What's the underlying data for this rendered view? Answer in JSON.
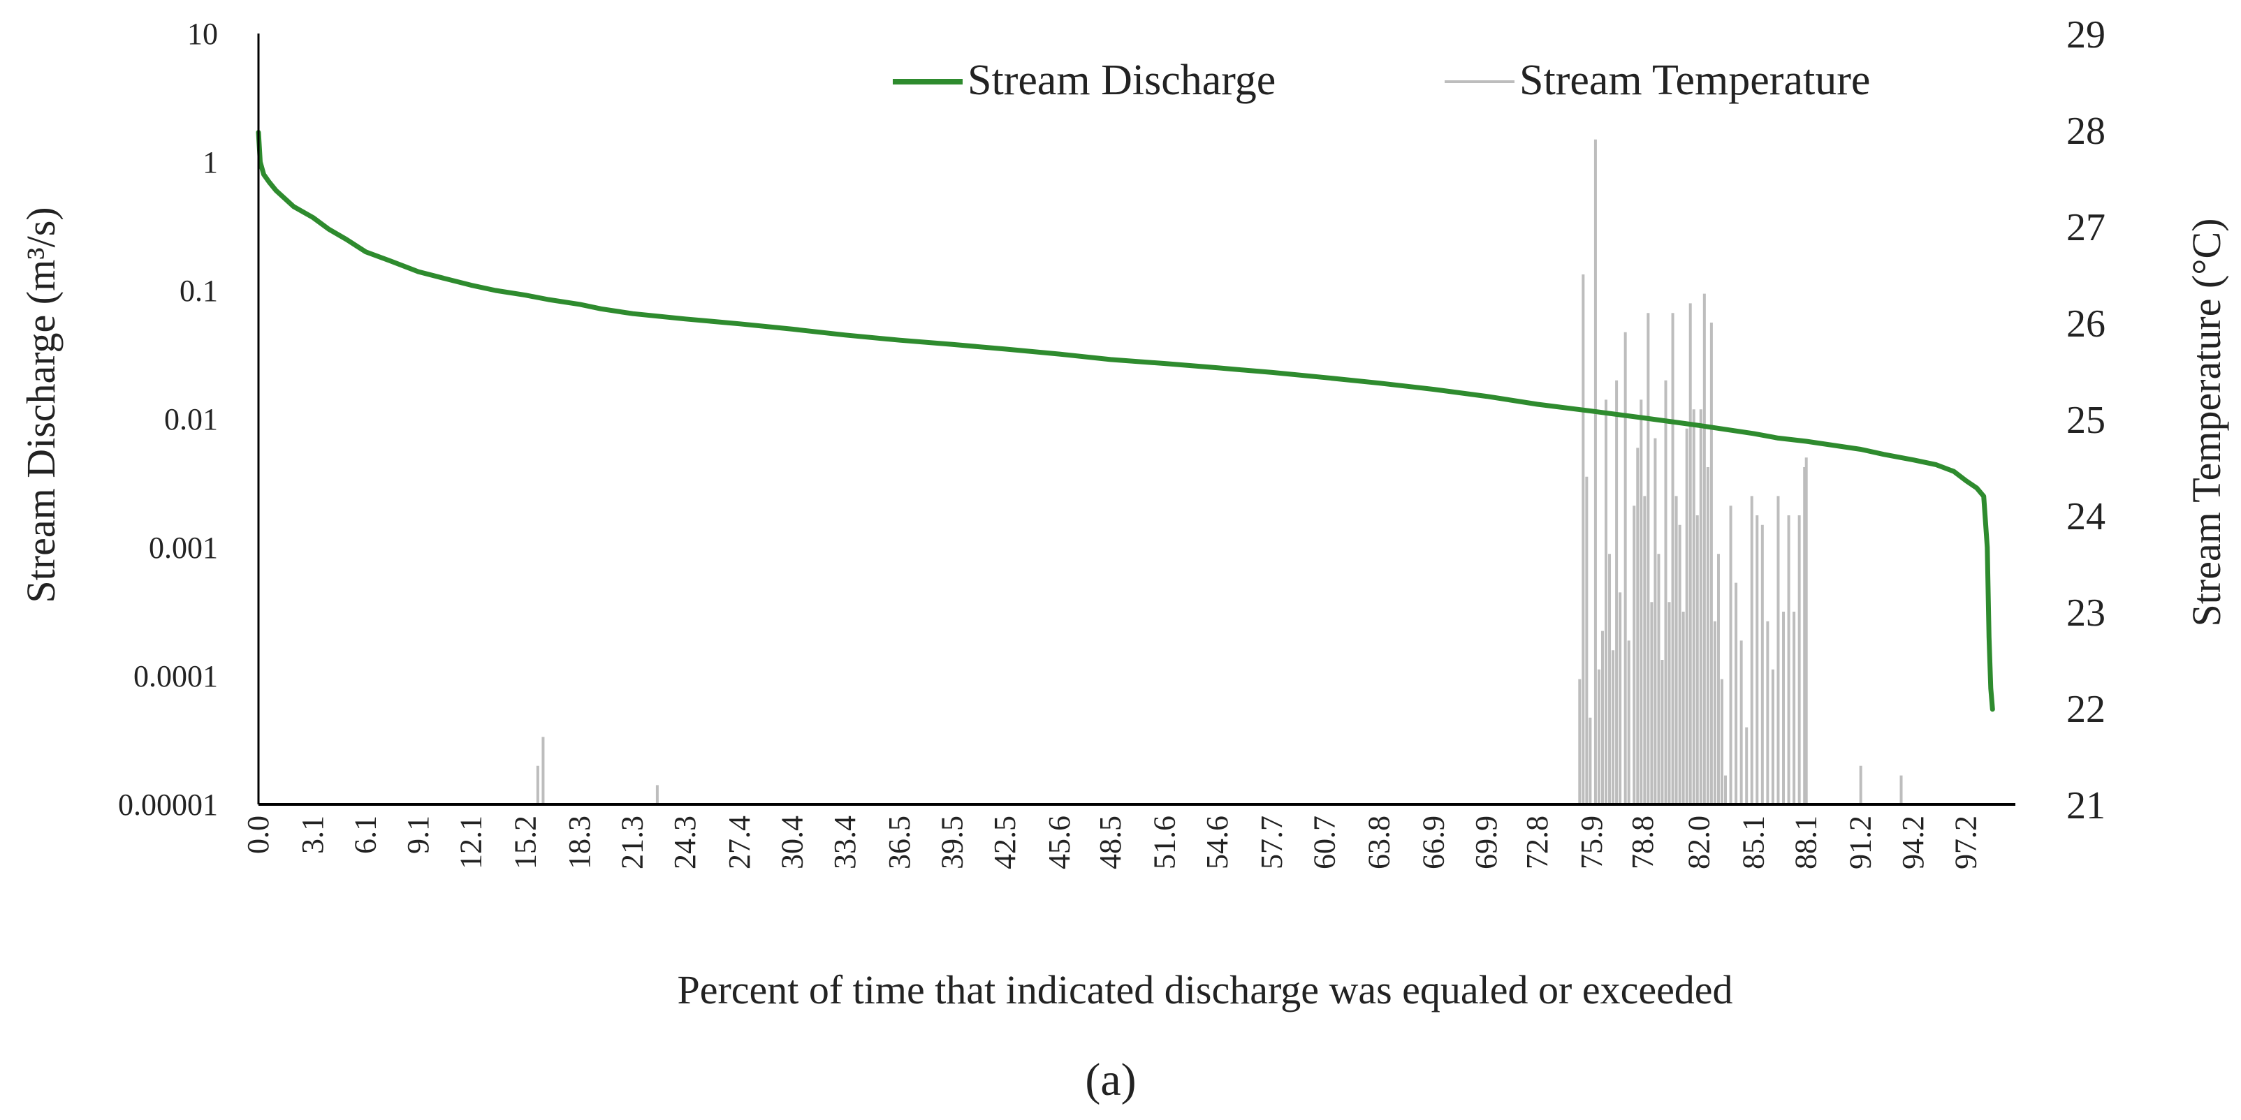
{
  "chart_data": {
    "type": "line",
    "title": "",
    "xlabel": "Percent of time that indicated discharge was equaled or exceeded",
    "ylabel_left": "Stream Discharge (m³/s)",
    "ylabel_right": "Stream Temperature (°C)",
    "panel_label": "(a)",
    "x_range": [
      0,
      100
    ],
    "x_tick_labels": [
      "0.0",
      "3.1",
      "6.1",
      "9.1",
      "12.1",
      "15.2",
      "18.3",
      "21.3",
      "24.3",
      "27.4",
      "30.4",
      "33.4",
      "36.5",
      "39.5",
      "42.5",
      "45.6",
      "48.5",
      "51.6",
      "54.6",
      "57.7",
      "60.7",
      "63.8",
      "66.9",
      "69.9",
      "72.8",
      "75.9",
      "78.8",
      "82.0",
      "85.1",
      "88.1",
      "91.2",
      "94.2",
      "97.2"
    ],
    "y_left": {
      "scale": "log",
      "range": [
        1e-05,
        10
      ],
      "tick_labels": [
        "10",
        "1",
        "0.1",
        "0.01",
        "0.001",
        "0.0001",
        "0.00001"
      ]
    },
    "y_right": {
      "scale": "linear",
      "range": [
        21,
        29
      ],
      "tick_labels": [
        "29",
        "28",
        "27",
        "26",
        "25",
        "24",
        "23",
        "22",
        "21"
      ]
    },
    "legend": {
      "placement": "top-right",
      "discharge_label": "Stream Discharge",
      "temperature_label": "Stream Temperature"
    },
    "colors": {
      "discharge": "#2e8b2e",
      "temperature": "#bdbdbd",
      "axis": "#000000"
    },
    "series": [
      {
        "name": "Stream Discharge",
        "axis": "left",
        "x": [
          0,
          0.1,
          0.3,
          0.6,
          1,
          1.5,
          2,
          3.1,
          4,
          5,
          6.1,
          7.5,
          9.1,
          10.5,
          12.1,
          13.5,
          15.2,
          16.5,
          18.3,
          19.5,
          21.3,
          24.3,
          27.4,
          30.4,
          33.4,
          36.5,
          39.5,
          42.5,
          45.6,
          48.5,
          51.6,
          54.6,
          57.7,
          60.7,
          63.8,
          66.9,
          69.9,
          72.8,
          75.9,
          78.8,
          82.0,
          83.5,
          85.1,
          86.5,
          88.1,
          91.2,
          92.5,
          94.2,
          95.5,
          96.5,
          97.2,
          97.8,
          98.2,
          98.4,
          98.5,
          98.6,
          98.7
        ],
        "y": [
          1.7,
          1.0,
          0.8,
          0.7,
          0.6,
          0.52,
          0.45,
          0.37,
          0.3,
          0.25,
          0.2,
          0.17,
          0.14,
          0.125,
          0.11,
          0.1,
          0.092,
          0.085,
          0.078,
          0.072,
          0.066,
          0.06,
          0.055,
          0.05,
          0.045,
          0.041,
          0.038,
          0.035,
          0.032,
          0.029,
          0.027,
          0.025,
          0.023,
          0.021,
          0.019,
          0.017,
          0.015,
          0.013,
          0.0115,
          0.0102,
          0.0089,
          0.0083,
          0.0077,
          0.0071,
          0.0067,
          0.0058,
          0.0053,
          0.0048,
          0.0044,
          0.0039,
          0.0033,
          0.0029,
          0.0025,
          0.001,
          0.0002,
          8e-05,
          5.5e-05
        ]
      },
      {
        "name": "Stream Temperature",
        "axis": "right",
        "type": "bar",
        "x": [
          15.9,
          16.2,
          22.7,
          75.2,
          75.4,
          75.6,
          75.8,
          76.1,
          76.3,
          76.5,
          76.7,
          76.9,
          77.1,
          77.3,
          77.5,
          77.8,
          78.0,
          78.3,
          78.5,
          78.7,
          78.9,
          79.1,
          79.3,
          79.5,
          79.7,
          79.9,
          80.1,
          80.3,
          80.5,
          80.7,
          80.9,
          81.1,
          81.3,
          81.5,
          81.7,
          81.9,
          82.1,
          82.3,
          82.5,
          82.7,
          82.9,
          83.1,
          83.3,
          83.5,
          83.8,
          84.1,
          84.4,
          84.7,
          85.0,
          85.3,
          85.6,
          85.9,
          86.2,
          86.5,
          86.8,
          87.1,
          87.4,
          87.7,
          88.0,
          88.1,
          91.2,
          93.5
        ],
        "y": [
          21.4,
          21.7,
          21.2,
          22.3,
          26.5,
          24.4,
          21.9,
          27.9,
          22.4,
          22.8,
          25.2,
          23.6,
          22.6,
          25.4,
          23.2,
          25.9,
          22.7,
          24.1,
          24.7,
          25.2,
          24.2,
          26.1,
          23.1,
          24.8,
          23.6,
          22.5,
          25.4,
          23.1,
          26.1,
          24.2,
          23.9,
          23.0,
          24.9,
          26.2,
          25.1,
          24.0,
          25.1,
          26.3,
          24.5,
          26.0,
          22.9,
          23.6,
          22.3,
          21.3,
          24.1,
          23.3,
          22.7,
          21.8,
          24.2,
          24.0,
          23.9,
          22.9,
          22.4,
          24.2,
          23.0,
          24.0,
          23.0,
          24.0,
          24.5,
          24.6,
          21.4,
          21.3
        ]
      }
    ]
  }
}
